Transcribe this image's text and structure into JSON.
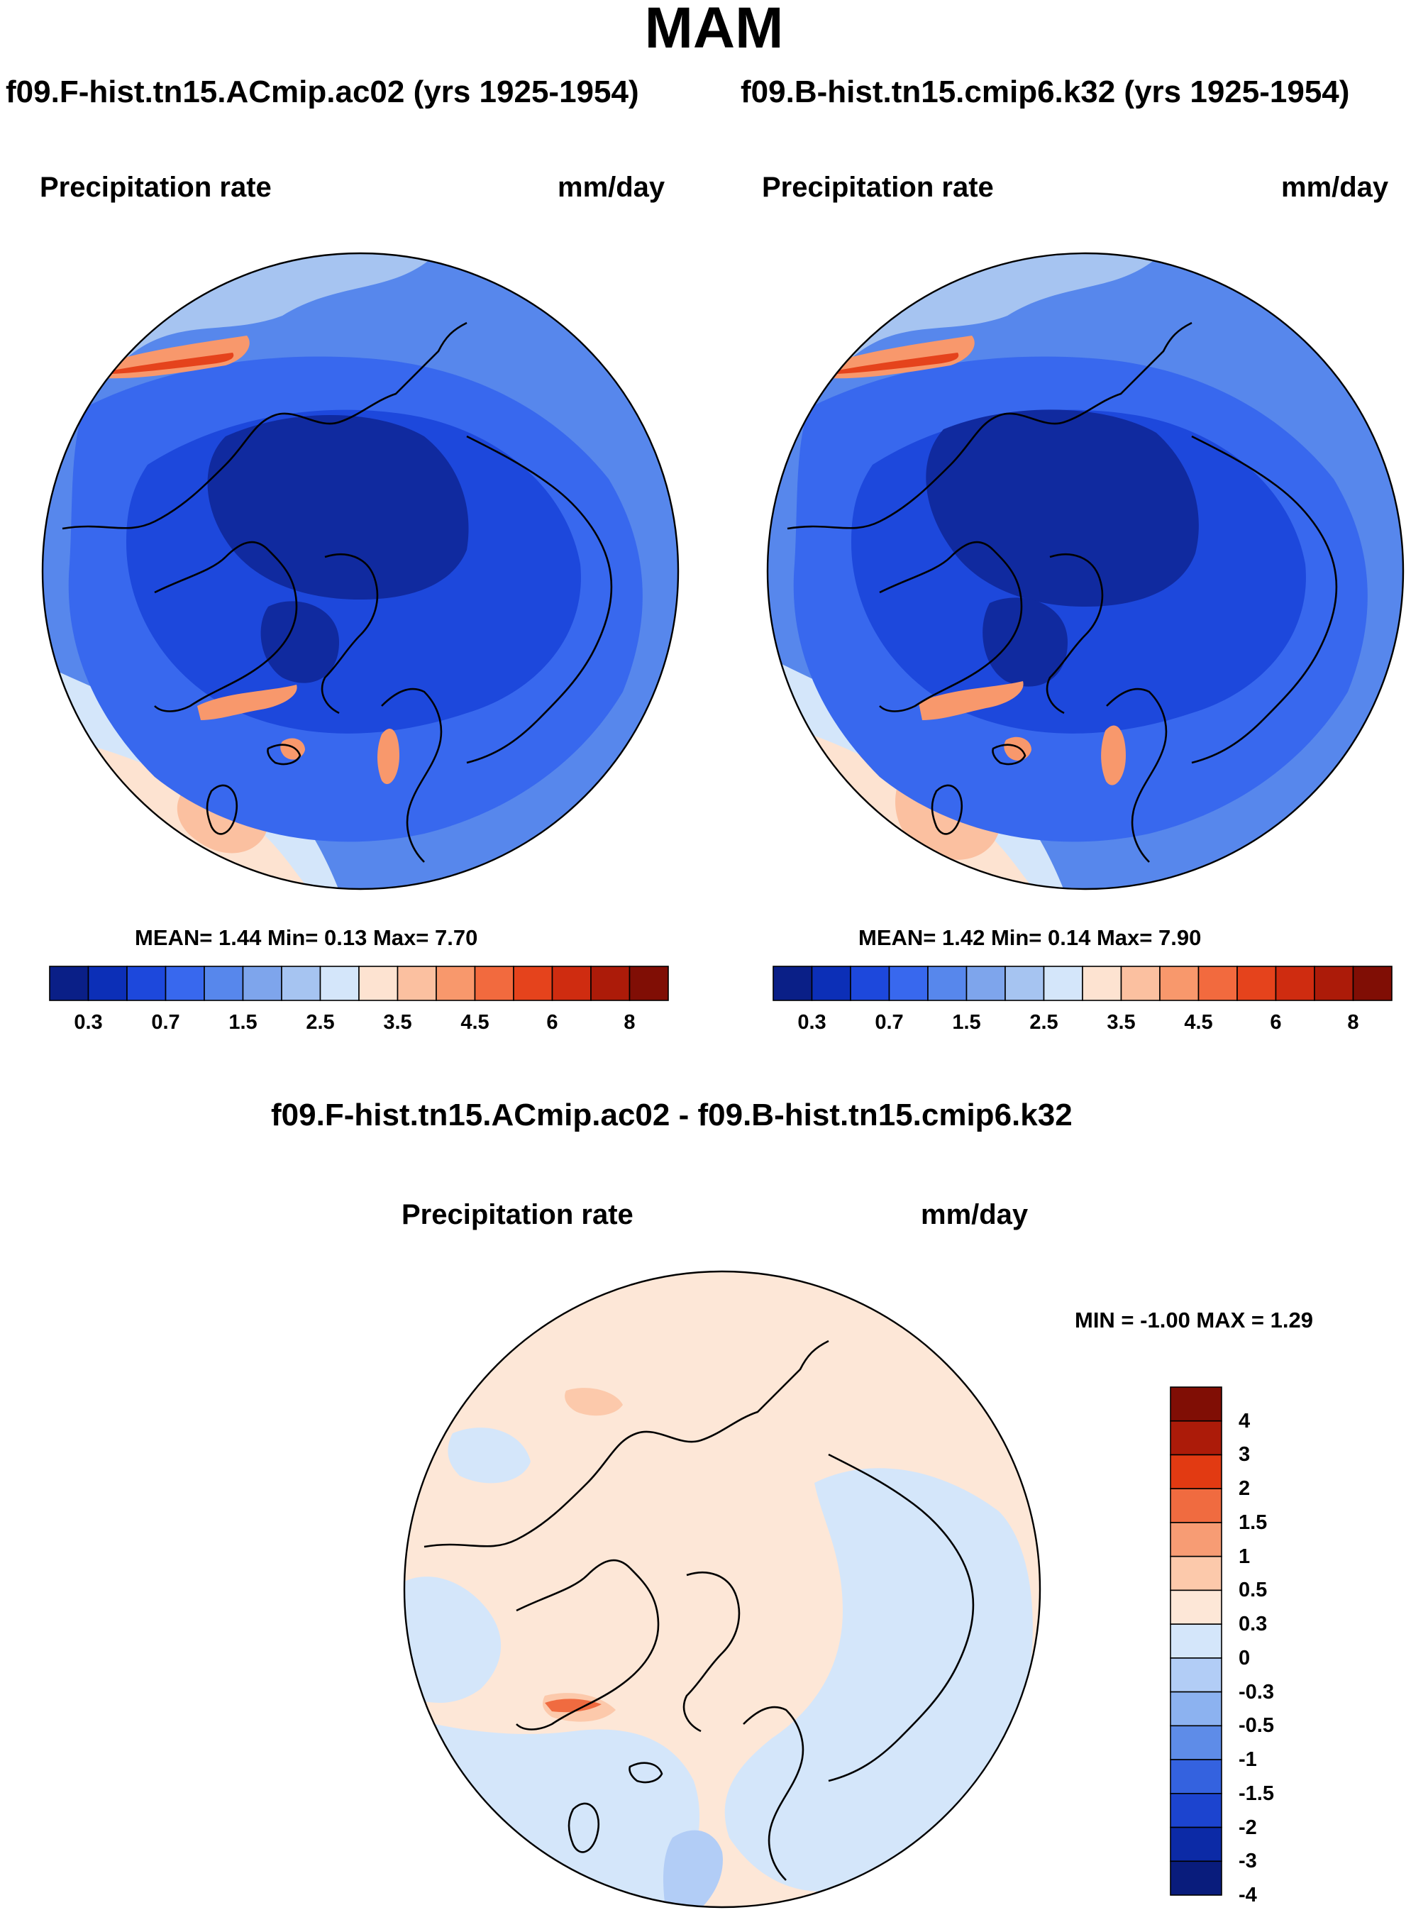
{
  "title": "MAM",
  "left_panel": {
    "run": "f09.F-hist.tn15.ACmip.ac02 (yrs 1925-1954)",
    "variable": "Precipitation rate",
    "units": "mm/day",
    "stats": "MEAN=   1.44  Min=   0.13  Max=   7.70"
  },
  "right_panel": {
    "run": "f09.B-hist.tn15.cmip6.k32 (yrs 1925-1954)",
    "variable": "Precipitation rate",
    "units": "mm/day",
    "stats": "MEAN=   1.42  Min=   0.14  Max=   7.90"
  },
  "diff_panel": {
    "title": "f09.F-hist.tn15.ACmip.ac02 - f09.B-hist.tn15.cmip6.k32",
    "variable": "Precipitation rate",
    "units": "mm/day",
    "stats": "MIN =  -1.00 MAX =   1.29"
  },
  "precip_colorbar": {
    "colors": [
      "#0a1f87",
      "#0c2fb7",
      "#1d48dc",
      "#3868ee",
      "#5787ec",
      "#7ea5ec",
      "#a6c4f1",
      "#d4e6fa",
      "#fde3d1",
      "#fbc0a0",
      "#f8986c",
      "#f26a3e",
      "#e5431c",
      "#cf2c10",
      "#ac1b09",
      "#800e05"
    ],
    "tick_labels": [
      "0.3",
      "0.7",
      "1.5",
      "2.5",
      "3.5",
      "4.5",
      "6",
      "8"
    ]
  },
  "diff_colorbar": {
    "colors": [
      "#800e05",
      "#ac1b09",
      "#e23a12",
      "#f06b40",
      "#f79c74",
      "#fcc9ab",
      "#fde7d7",
      "#d4e6fa",
      "#b2cdf6",
      "#8cb2f0",
      "#5e8ce8",
      "#3462df",
      "#1c44cf",
      "#0c2aa6",
      "#091c7c"
    ],
    "tick_labels": [
      "4",
      "3",
      "2",
      "1.5",
      "1",
      "0.5",
      "0.3",
      "0",
      "-0.3",
      "-0.5",
      "-1",
      "-1.5",
      "-2",
      "-3",
      "-4"
    ]
  },
  "map_palette": {
    "deep": "#0c2fb7",
    "core": "#102a9f",
    "mid": "#1d48dc",
    "medium": "#3868ee",
    "light": "#5787ec",
    "pale": "#7ea5ec",
    "faint": "#a6c4f1",
    "ice": "#d4e6fa",
    "warm1": "#fde3d1",
    "warm2": "#fbc0a0",
    "warm3": "#f8986c",
    "hot": "#e5431c",
    "diff_base": "#fde7d7",
    "diff_blue": "#d4e6fa",
    "diff_blue2": "#b2cdf6",
    "diff_red": "#fcc9ab",
    "diff_hot": "#f06b40"
  }
}
